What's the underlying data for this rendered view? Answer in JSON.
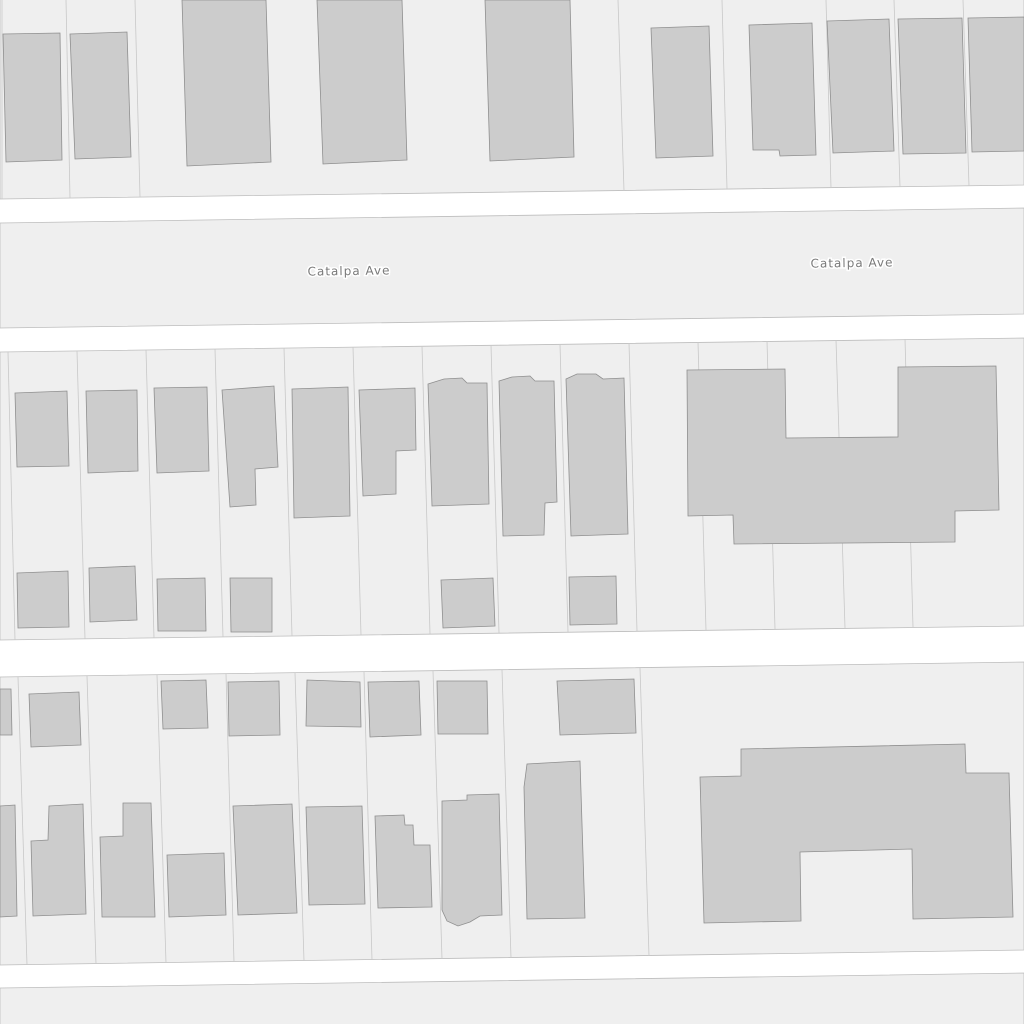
{
  "map": {
    "colors": {
      "street": "#ffffff",
      "block": "#efefef",
      "lot_line": "#c8c8c8",
      "building_fill": "#cccccc",
      "building_stroke": "#8f8f8f",
      "label": "#7a7a7a"
    },
    "street_labels": [
      {
        "text": "Catalpa Ave"
      },
      {
        "text": "Catalpa Ave"
      }
    ]
  }
}
